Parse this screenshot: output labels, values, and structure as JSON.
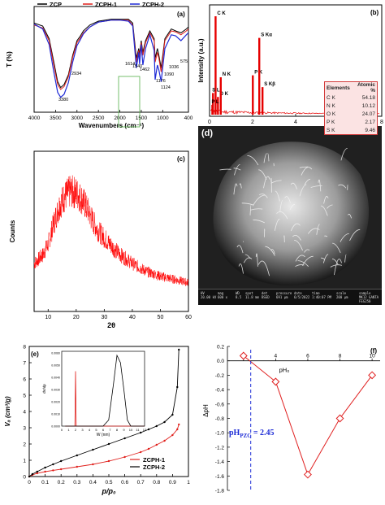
{
  "colors": {
    "zcp": "#000000",
    "zcph1": "#e0201c",
    "zcph2": "#1f2bd6",
    "edx": "#e60000",
    "xrd": "#ff0000",
    "dph": "#e02020",
    "pzc_line": "#1c2bd6",
    "pzc_text": "#1c2bd6",
    "box_green": "#55b04a"
  },
  "panels": {
    "a": "(a)",
    "b": "(b)",
    "c": "(c)",
    "d": "(d)",
    "e": "(e)",
    "f": "(f)"
  },
  "chart_data": [
    {
      "id": "a",
      "type": "line",
      "xlabel": "Wavenumbers (cm⁻¹)",
      "ylabel": "T (%)",
      "xlim": [
        4000,
        400
      ],
      "xticks": [
        "4000",
        "3500",
        "3000",
        "2500",
        "2000",
        "1500",
        "1000",
        "400"
      ],
      "legend": [
        "ZCP",
        "ZCPH-1",
        "ZCPH-2"
      ],
      "legend_position": "top",
      "annotations": [
        "3380",
        "2934",
        "1614",
        "1540",
        "1462",
        "1176",
        "1124",
        "1090",
        "1036",
        "575"
      ],
      "series": [
        {
          "name": "ZCP",
          "x": [
            4000,
            3800,
            3650,
            3550,
            3450,
            3380,
            3300,
            3200,
            3100,
            3000,
            2934,
            2850,
            2700,
            2500,
            2200,
            2000,
            1800,
            1700,
            1614,
            1560,
            1540,
            1500,
            1462,
            1400,
            1300,
            1200,
            1176,
            1124,
            1090,
            1036,
            950,
            800,
            700,
            575,
            450,
            400
          ],
          "y": [
            0.88,
            0.85,
            0.72,
            0.5,
            0.28,
            0.22,
            0.25,
            0.35,
            0.55,
            0.7,
            0.74,
            0.8,
            0.86,
            0.9,
            0.92,
            0.92,
            0.92,
            0.88,
            0.52,
            0.62,
            0.56,
            0.7,
            0.58,
            0.7,
            0.8,
            0.72,
            0.52,
            0.62,
            0.55,
            0.42,
            0.72,
            0.82,
            0.8,
            0.78,
            0.82,
            0.84
          ]
        },
        {
          "name": "ZCPH-1",
          "x": [
            4000,
            3800,
            3650,
            3550,
            3450,
            3380,
            3300,
            3200,
            3100,
            3000,
            2934,
            2850,
            2700,
            2500,
            2200,
            2000,
            1800,
            1700,
            1614,
            1560,
            1540,
            1500,
            1462,
            1400,
            1300,
            1200,
            1176,
            1124,
            1090,
            1036,
            950,
            800,
            700,
            575,
            450,
            400
          ],
          "y": [
            0.86,
            0.83,
            0.7,
            0.47,
            0.25,
            0.2,
            0.23,
            0.33,
            0.53,
            0.68,
            0.72,
            0.78,
            0.84,
            0.89,
            0.91,
            0.91,
            0.91,
            0.86,
            0.48,
            0.6,
            0.53,
            0.68,
            0.55,
            0.68,
            0.78,
            0.7,
            0.48,
            0.58,
            0.52,
            0.38,
            0.7,
            0.8,
            0.79,
            0.76,
            0.8,
            0.82
          ]
        },
        {
          "name": "ZCPH-2",
          "x": [
            4000,
            3800,
            3650,
            3550,
            3450,
            3380,
            3300,
            3200,
            3100,
            3000,
            2934,
            2850,
            2700,
            2500,
            2200,
            2000,
            1800,
            1700,
            1614,
            1560,
            1540,
            1500,
            1462,
            1400,
            1300,
            1200,
            1176,
            1124,
            1090,
            1036,
            950,
            800,
            700,
            575,
            450,
            400
          ],
          "y": [
            0.87,
            0.82,
            0.66,
            0.4,
            0.17,
            0.12,
            0.15,
            0.27,
            0.48,
            0.65,
            0.7,
            0.77,
            0.84,
            0.89,
            0.91,
            0.91,
            0.9,
            0.85,
            0.42,
            0.58,
            0.46,
            0.66,
            0.45,
            0.62,
            0.76,
            0.6,
            0.3,
            0.45,
            0.4,
            0.28,
            0.62,
            0.76,
            0.75,
            0.7,
            0.76,
            0.78
          ]
        }
      ]
    },
    {
      "id": "b",
      "type": "bar",
      "xlabel": "Energy (Kev)",
      "ylabel": "Intensity (a.u.)",
      "xlim": [
        0,
        8
      ],
      "xticks": [
        "0",
        "2",
        "4",
        "6",
        "8"
      ],
      "peak_labels": [
        "C K",
        "O K",
        "N K",
        "S L",
        "P L",
        "P K",
        "S Kα",
        "S Kβ"
      ],
      "peaks": [
        {
          "x": 0.28,
          "y": 1.0
        },
        {
          "x": 0.39,
          "y": 0.18
        },
        {
          "x": 0.52,
          "y": 0.38
        },
        {
          "x": 0.16,
          "y": 0.22
        },
        {
          "x": 0.13,
          "y": 0.1
        },
        {
          "x": 2.01,
          "y": 0.4
        },
        {
          "x": 2.31,
          "y": 0.78
        },
        {
          "x": 2.46,
          "y": 0.28
        }
      ],
      "table": {
        "headers": [
          "Elements",
          "Atomic %"
        ],
        "rows": [
          [
            "C K",
            "54.18"
          ],
          [
            "N K",
            "10.12"
          ],
          [
            "O K",
            "24.07"
          ],
          [
            "P K",
            "2.17"
          ],
          [
            "S K",
            "9.46"
          ]
        ]
      }
    },
    {
      "id": "c",
      "type": "line",
      "xlabel": "2θ",
      "ylabel": "Counts",
      "xlim": [
        5,
        60
      ],
      "xticks": [
        "10",
        "20",
        "30",
        "40",
        "50",
        "60"
      ],
      "envelope": {
        "x": [
          5,
          8,
          10,
          12,
          14,
          16,
          18,
          20,
          22,
          24,
          26,
          28,
          30,
          33,
          36,
          40,
          45,
          50,
          55,
          60
        ],
        "y": [
          0.3,
          0.35,
          0.42,
          0.55,
          0.66,
          0.72,
          0.75,
          0.74,
          0.7,
          0.64,
          0.56,
          0.5,
          0.46,
          0.4,
          0.35,
          0.3,
          0.25,
          0.22,
          0.2,
          0.18
        ]
      }
    },
    {
      "id": "e",
      "type": "line",
      "xlabel": "p/p₀",
      "ylabel": "Vₐ (cm³/g)",
      "xlim": [
        0,
        1.0
      ],
      "ylim": [
        0,
        8
      ],
      "xticks": [
        "0",
        "0.1",
        "0.2",
        "0.3",
        "0.4",
        "0.5",
        "0.6",
        "0.7",
        "0.8",
        "0.9",
        "1"
      ],
      "yticks": [
        "0",
        "1",
        "2",
        "3",
        "4",
        "5",
        "6",
        "7",
        "8"
      ],
      "legend": [
        "ZCPH-1",
        "ZCPH-2"
      ],
      "series": [
        {
          "name": "ZCPH-1",
          "x": [
            0.0,
            0.02,
            0.05,
            0.1,
            0.15,
            0.2,
            0.3,
            0.4,
            0.5,
            0.6,
            0.7,
            0.75,
            0.8,
            0.85,
            0.9,
            0.93,
            0.94
          ],
          "y": [
            0.0,
            0.1,
            0.2,
            0.3,
            0.38,
            0.45,
            0.6,
            0.75,
            0.95,
            1.2,
            1.5,
            1.7,
            1.95,
            2.2,
            2.55,
            2.9,
            3.2
          ]
        },
        {
          "name": "ZCPH-2",
          "x": [
            0.0,
            0.02,
            0.05,
            0.1,
            0.15,
            0.2,
            0.3,
            0.4,
            0.5,
            0.6,
            0.7,
            0.75,
            0.8,
            0.85,
            0.9,
            0.93,
            0.94
          ],
          "y": [
            0.0,
            0.15,
            0.3,
            0.55,
            0.75,
            0.95,
            1.3,
            1.65,
            2.0,
            2.35,
            2.7,
            2.9,
            3.1,
            3.35,
            3.8,
            5.5,
            7.8
          ]
        }
      ],
      "inset": {
        "xlabel": "W (nm)",
        "ylabel": "dV/dp",
        "xticks": [
          "0",
          "1",
          "2",
          "3",
          "4",
          "5",
          "6",
          "7",
          "8",
          "9",
          "10",
          "11",
          "12"
        ],
        "yticks": [
          "0.0000",
          "0.0010",
          "0.0020",
          "0.0030",
          "0.0040",
          "0.0050",
          "0.0060"
        ],
        "series": [
          {
            "name": "ZCPH-1",
            "x": [
              0.5,
              1.5,
              1.9,
              2.0,
              2.1,
              2.5,
              4,
              6,
              8,
              10,
              12
            ],
            "y": [
              0,
              0,
              0,
              0.0045,
              0,
              0,
              0,
              0,
              0,
              0,
              0
            ]
          },
          {
            "name": "ZCPH-2",
            "x": [
              0.5,
              4,
              6,
              6.8,
              7.5,
              8,
              8.5,
              9,
              9.5,
              10,
              12
            ],
            "y": [
              0,
              0,
              0,
              0.0005,
              0.0035,
              0.0058,
              0.0052,
              0.003,
              0.0005,
              0,
              0
            ]
          }
        ]
      }
    },
    {
      "id": "f",
      "type": "line",
      "xlabel": "pH₀",
      "ylabel": "ΔpH",
      "xlim": [
        1,
        10.5
      ],
      "ylim": [
        -1.8,
        0.2
      ],
      "xticks": [
        "2",
        "4",
        "6",
        "8",
        "10"
      ],
      "yticks": [
        "0.2",
        "0.0",
        "-0.2",
        "-0.4",
        "-0.6",
        "-0.8",
        "-1.0",
        "-1.2",
        "-1.4",
        "-1.6",
        "-1.8"
      ],
      "series": [
        {
          "name": "",
          "x": [
            2,
            4,
            6,
            8,
            10
          ],
          "y": [
            0.07,
            -0.29,
            -1.58,
            -0.8,
            -0.2
          ]
        }
      ],
      "pzc": {
        "value": 2.45,
        "label": "pH",
        "sub": "PZC",
        "suffix": " = 2.45"
      }
    }
  ],
  "sem": {
    "strip": [
      [
        "HV",
        "20.00 kV"
      ],
      [
        "mag",
        "600 x"
      ],
      [
        "WD",
        "8.5"
      ],
      [
        "spot",
        "11.8 mm"
      ],
      [
        "det",
        "BSED"
      ],
      [
        "pressure",
        "691 μm"
      ],
      [
        "date",
        "6/5/2022"
      ],
      [
        "time",
        "1:40:07 PM"
      ],
      [
        "scale",
        "200 μm"
      ],
      [
        "sample",
        "MK12 GANTA FEG250"
      ]
    ]
  }
}
